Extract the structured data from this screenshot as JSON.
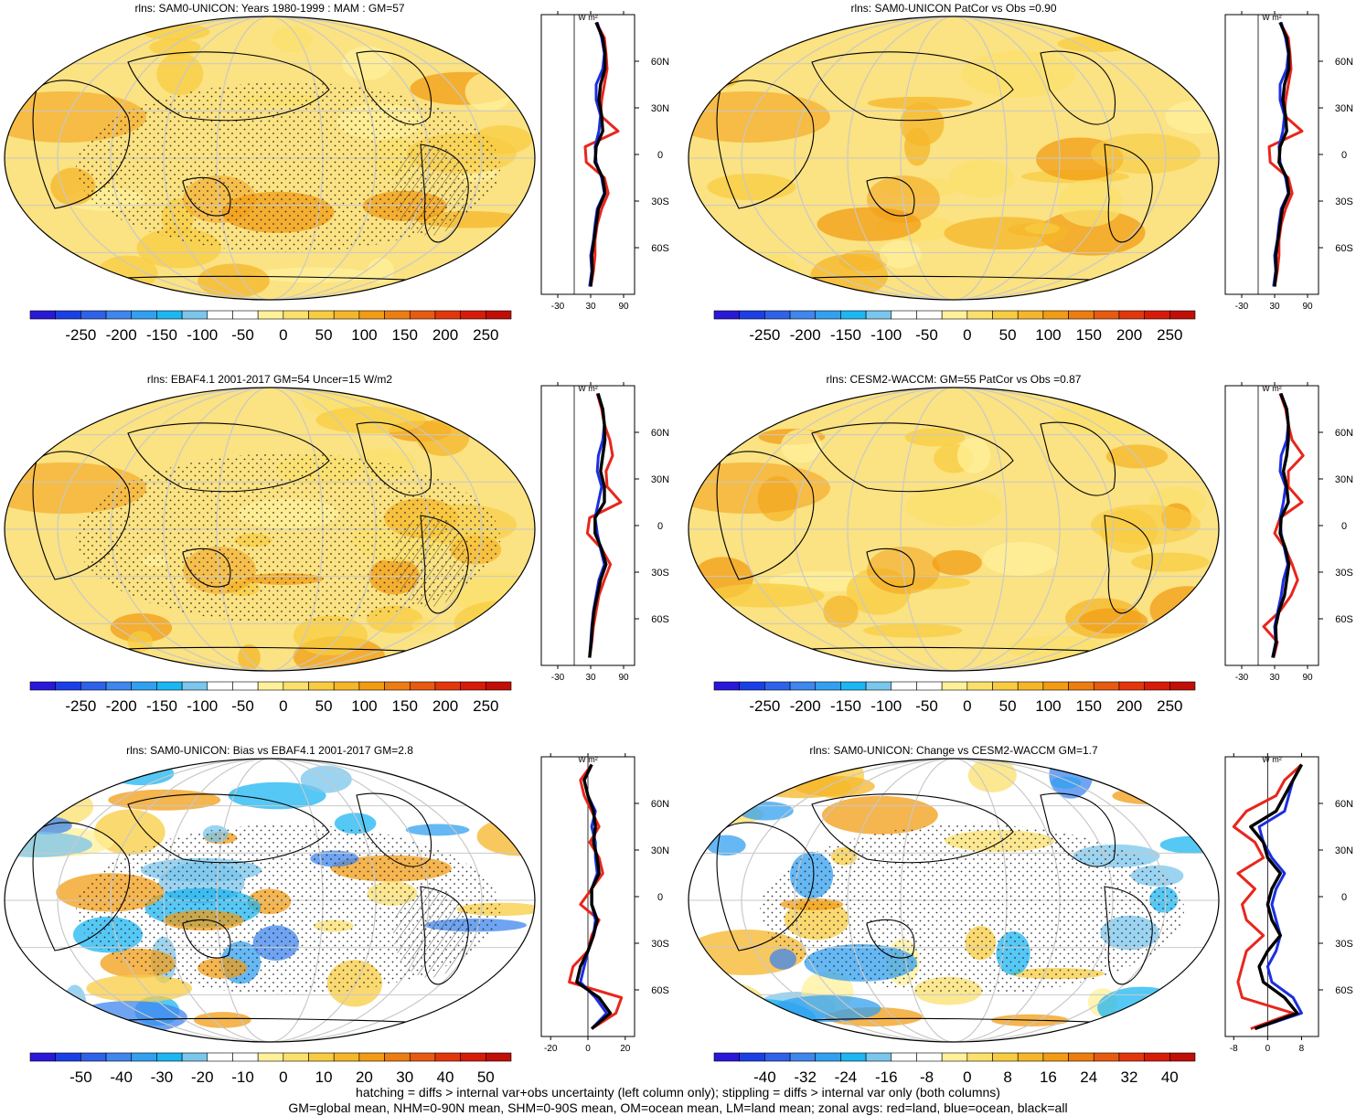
{
  "title": "",
  "colors": {
    "land_line": "#e8261c",
    "ocean_line": "#1b2fe0",
    "all_line": "#000000",
    "graticule": "#c8c8c8"
  },
  "palettes": {
    "absolute": [
      "#2a18d8",
      "#1b3fe6",
      "#2f62ea",
      "#3f86ee",
      "#32a0f0",
      "#1cb6f2",
      "#7ac6ec",
      "#ffffff",
      "#ffffff",
      "#fff09a",
      "#fbe06c",
      "#f8cc40",
      "#f6b62a",
      "#f29c14",
      "#ed7d10",
      "#e85a10",
      "#e4360c",
      "#d81a08",
      "#c10e06"
    ],
    "bias": [
      "#2a18d8",
      "#1b3fe6",
      "#2f62ea",
      "#3f86ee",
      "#32a0f0",
      "#1cb6f2",
      "#7ac6ec",
      "#ffffff",
      "#ffffff",
      "#fff09a",
      "#fbe06c",
      "#f8cc40",
      "#f6b62a",
      "#f29c14",
      "#ed7d10",
      "#e85a10",
      "#e4360c",
      "#d81a08",
      "#c10e06"
    ]
  },
  "lat_ticks": [
    "60N",
    "30N",
    "0",
    "30S",
    "60S"
  ],
  "panels": [
    {
      "id": "p1",
      "title": "rlns: SAM0-UNICON: Years 1980-1999 : MAM : GM=57",
      "fill": "#fbe282",
      "variant": "absolute",
      "stipple": true,
      "hatch": true,
      "colorbar_labels": [
        "-250",
        "-200",
        "-150",
        "-100",
        "-50",
        "0",
        "50",
        "100",
        "150",
        "200",
        "250"
      ],
      "zonal": {
        "unit_label": "W m²",
        "x_ticks": [
          "-30",
          "30",
          "90"
        ],
        "x_range": [
          -60,
          110
        ],
        "lat": [
          -85,
          -75,
          -65,
          -55,
          -45,
          -35,
          -25,
          -15,
          -5,
          5,
          15,
          25,
          35,
          45,
          55,
          65,
          75,
          85
        ],
        "land": [
          30,
          35,
          38,
          38,
          42,
          50,
          62,
          55,
          22,
          20,
          80,
          48,
          50,
          55,
          60,
          58,
          55,
          40
        ],
        "ocean": [
          28,
          32,
          30,
          35,
          38,
          42,
          55,
          50,
          40,
          38,
          45,
          48,
          40,
          40,
          52,
          55,
          50,
          42
        ],
        "all": [
          30,
          33,
          32,
          36,
          40,
          44,
          56,
          52,
          38,
          40,
          52,
          50,
          45,
          48,
          56,
          56,
          52,
          40
        ]
      }
    },
    {
      "id": "p2",
      "title": "rlns: SAM0-UNICON PatCor vs Obs =0.90",
      "fill": "#fbe282",
      "variant": "absolute",
      "stipple": false,
      "hatch": false,
      "colorbar_labels": [
        "-250",
        "-200",
        "-150",
        "-100",
        "-50",
        "0",
        "50",
        "100",
        "150",
        "200",
        "250"
      ],
      "zonal": {
        "unit_label": "W m²",
        "x_ticks": [
          "-30",
          "30",
          "90"
        ],
        "x_range": [
          -60,
          110
        ],
        "lat": [
          -85,
          -75,
          -65,
          -55,
          -45,
          -35,
          -25,
          -15,
          -5,
          5,
          15,
          25,
          35,
          45,
          55,
          65,
          75,
          85
        ],
        "land": [
          30,
          35,
          38,
          38,
          42,
          50,
          62,
          55,
          22,
          20,
          80,
          48,
          50,
          55,
          60,
          58,
          55,
          40
        ],
        "ocean": [
          28,
          32,
          30,
          35,
          38,
          42,
          55,
          50,
          40,
          38,
          45,
          48,
          40,
          40,
          52,
          55,
          50,
          42
        ],
        "all": [
          30,
          33,
          32,
          36,
          40,
          44,
          56,
          52,
          38,
          40,
          52,
          50,
          45,
          48,
          56,
          56,
          52,
          40
        ]
      }
    },
    {
      "id": "p3",
      "title": "rlns: EBAF4.1 2001-2017 GM=54 Uncer=15 W/m2",
      "fill": "#fbe282",
      "variant": "absolute",
      "stipple": true,
      "hatch": true,
      "colorbar_labels": [
        "-250",
        "-200",
        "-150",
        "-100",
        "-50",
        "0",
        "50",
        "100",
        "150",
        "200",
        "250"
      ],
      "zonal": {
        "unit_label": "W m²",
        "x_ticks": [
          "-30",
          "30",
          "90"
        ],
        "x_range": [
          -60,
          110
        ],
        "lat": [
          -85,
          -75,
          -65,
          -55,
          -45,
          -35,
          -25,
          -15,
          -5,
          5,
          15,
          25,
          35,
          45,
          55,
          65,
          75,
          85
        ],
        "land": [
          28,
          32,
          35,
          40,
          45,
          55,
          66,
          50,
          24,
          28,
          85,
          60,
          58,
          70,
          65,
          55,
          50,
          42
        ],
        "ocean": [
          28,
          30,
          32,
          35,
          40,
          45,
          55,
          48,
          42,
          38,
          44,
          50,
          42,
          44,
          52,
          55,
          52,
          44
        ],
        "all": [
          28,
          31,
          33,
          36,
          42,
          48,
          58,
          50,
          38,
          38,
          55,
          55,
          48,
          52,
          56,
          55,
          52,
          43
        ]
      }
    },
    {
      "id": "p4",
      "title": "rlns: CESM2-WACCM: GM=55 PatCor vs Obs =0.87",
      "fill": "#fbe282",
      "variant": "absolute",
      "stipple": false,
      "hatch": false,
      "colorbar_labels": [
        "-250",
        "-200",
        "-150",
        "-100",
        "-50",
        "0",
        "50",
        "100",
        "150",
        "200",
        "250"
      ],
      "zonal": {
        "unit_label": "W m²",
        "x_ticks": [
          "-30",
          "30",
          "90"
        ],
        "x_range": [
          -60,
          110
        ],
        "lat": [
          -85,
          -75,
          -65,
          -55,
          -45,
          -35,
          -25,
          -15,
          -5,
          5,
          15,
          25,
          35,
          45,
          55,
          65,
          75,
          85
        ],
        "land": [
          28,
          35,
          10,
          40,
          60,
          72,
          62,
          50,
          30,
          40,
          80,
          55,
          55,
          82,
          62,
          55,
          50,
          40
        ],
        "ocean": [
          26,
          32,
          30,
          36,
          42,
          46,
          54,
          48,
          42,
          40,
          46,
          50,
          40,
          42,
          52,
          55,
          52,
          42
        ],
        "all": [
          27,
          33,
          32,
          38,
          48,
          52,
          56,
          50,
          40,
          42,
          55,
          52,
          46,
          52,
          55,
          55,
          52,
          41
        ]
      }
    },
    {
      "id": "p5",
      "title": "rlns: SAM0-UNICON: Bias vs EBAF4.1 2001-2017 GM=2.8",
      "fill": "#ffffff",
      "variant": "bias",
      "stipple": true,
      "hatch": true,
      "colorbar_labels": [
        "-50",
        "-40",
        "-30",
        "-20",
        "-10",
        "0",
        "10",
        "20",
        "30",
        "40",
        "50"
      ],
      "zonal": {
        "unit_label": "W m²",
        "x_ticks": [
          "-20",
          "0",
          "20"
        ],
        "x_range": [
          -25,
          25
        ],
        "lat": [
          -85,
          -75,
          -65,
          -55,
          -45,
          -35,
          -25,
          -15,
          -5,
          5,
          15,
          25,
          35,
          45,
          55,
          65,
          75,
          85
        ],
        "land": [
          2,
          15,
          18,
          -10,
          -8,
          0,
          2,
          6,
          -4,
          2,
          8,
          6,
          1,
          6,
          2,
          -2,
          -4,
          2
        ],
        "ocean": [
          2,
          10,
          4,
          -4,
          -2,
          0,
          3,
          4,
          2,
          2,
          5,
          4,
          4,
          2,
          4,
          0,
          -2,
          2
        ],
        "all": [
          2,
          12,
          6,
          -6,
          -4,
          0,
          3,
          5,
          2,
          2,
          6,
          5,
          3,
          4,
          3,
          0,
          -2,
          2
        ]
      }
    },
    {
      "id": "p6",
      "title": "rlns: SAM0-UNICON: Change vs CESM2-WACCM GM=1.7",
      "fill": "#ffffff",
      "variant": "bias",
      "stipple": true,
      "hatch": false,
      "colorbar_labels": [
        "-40",
        "-32",
        "-24",
        "-16",
        "-8",
        "0",
        "8",
        "16",
        "24",
        "32",
        "40"
      ],
      "zonal": {
        "unit_label": "W m²",
        "x_ticks": [
          "-8",
          "0",
          "8"
        ],
        "x_range": [
          -10,
          12
        ],
        "lat": [
          -85,
          -75,
          -65,
          -55,
          -45,
          -35,
          -25,
          -15,
          -5,
          5,
          15,
          25,
          35,
          45,
          55,
          65,
          75,
          85
        ],
        "land": [
          -4,
          6,
          -6,
          -7,
          -6,
          -5,
          -1,
          -5,
          -6,
          -3,
          -7,
          -1,
          -3,
          -8,
          -5,
          2,
          4,
          8
        ],
        "ocean": [
          -3,
          8,
          6,
          1,
          0,
          2,
          3,
          2,
          1,
          2,
          4,
          1,
          -1,
          -2,
          4,
          5,
          6,
          8
        ],
        "all": [
          -3,
          7,
          4,
          -1,
          -2,
          0,
          3,
          1,
          0,
          1,
          3,
          0,
          -1,
          -4,
          2,
          4,
          6,
          8
        ]
      }
    }
  ],
  "footer": {
    "line1": "hatching = diffs > internal var+obs uncertainty (left column only); stippling = diffs > internal var only (both columns)",
    "line2": "GM=global mean, NHM=0-90N mean, SHM=0-90S mean, OM=ocean mean, LM=land mean; zonal avgs: red=land, blue=ocean, black=all"
  }
}
